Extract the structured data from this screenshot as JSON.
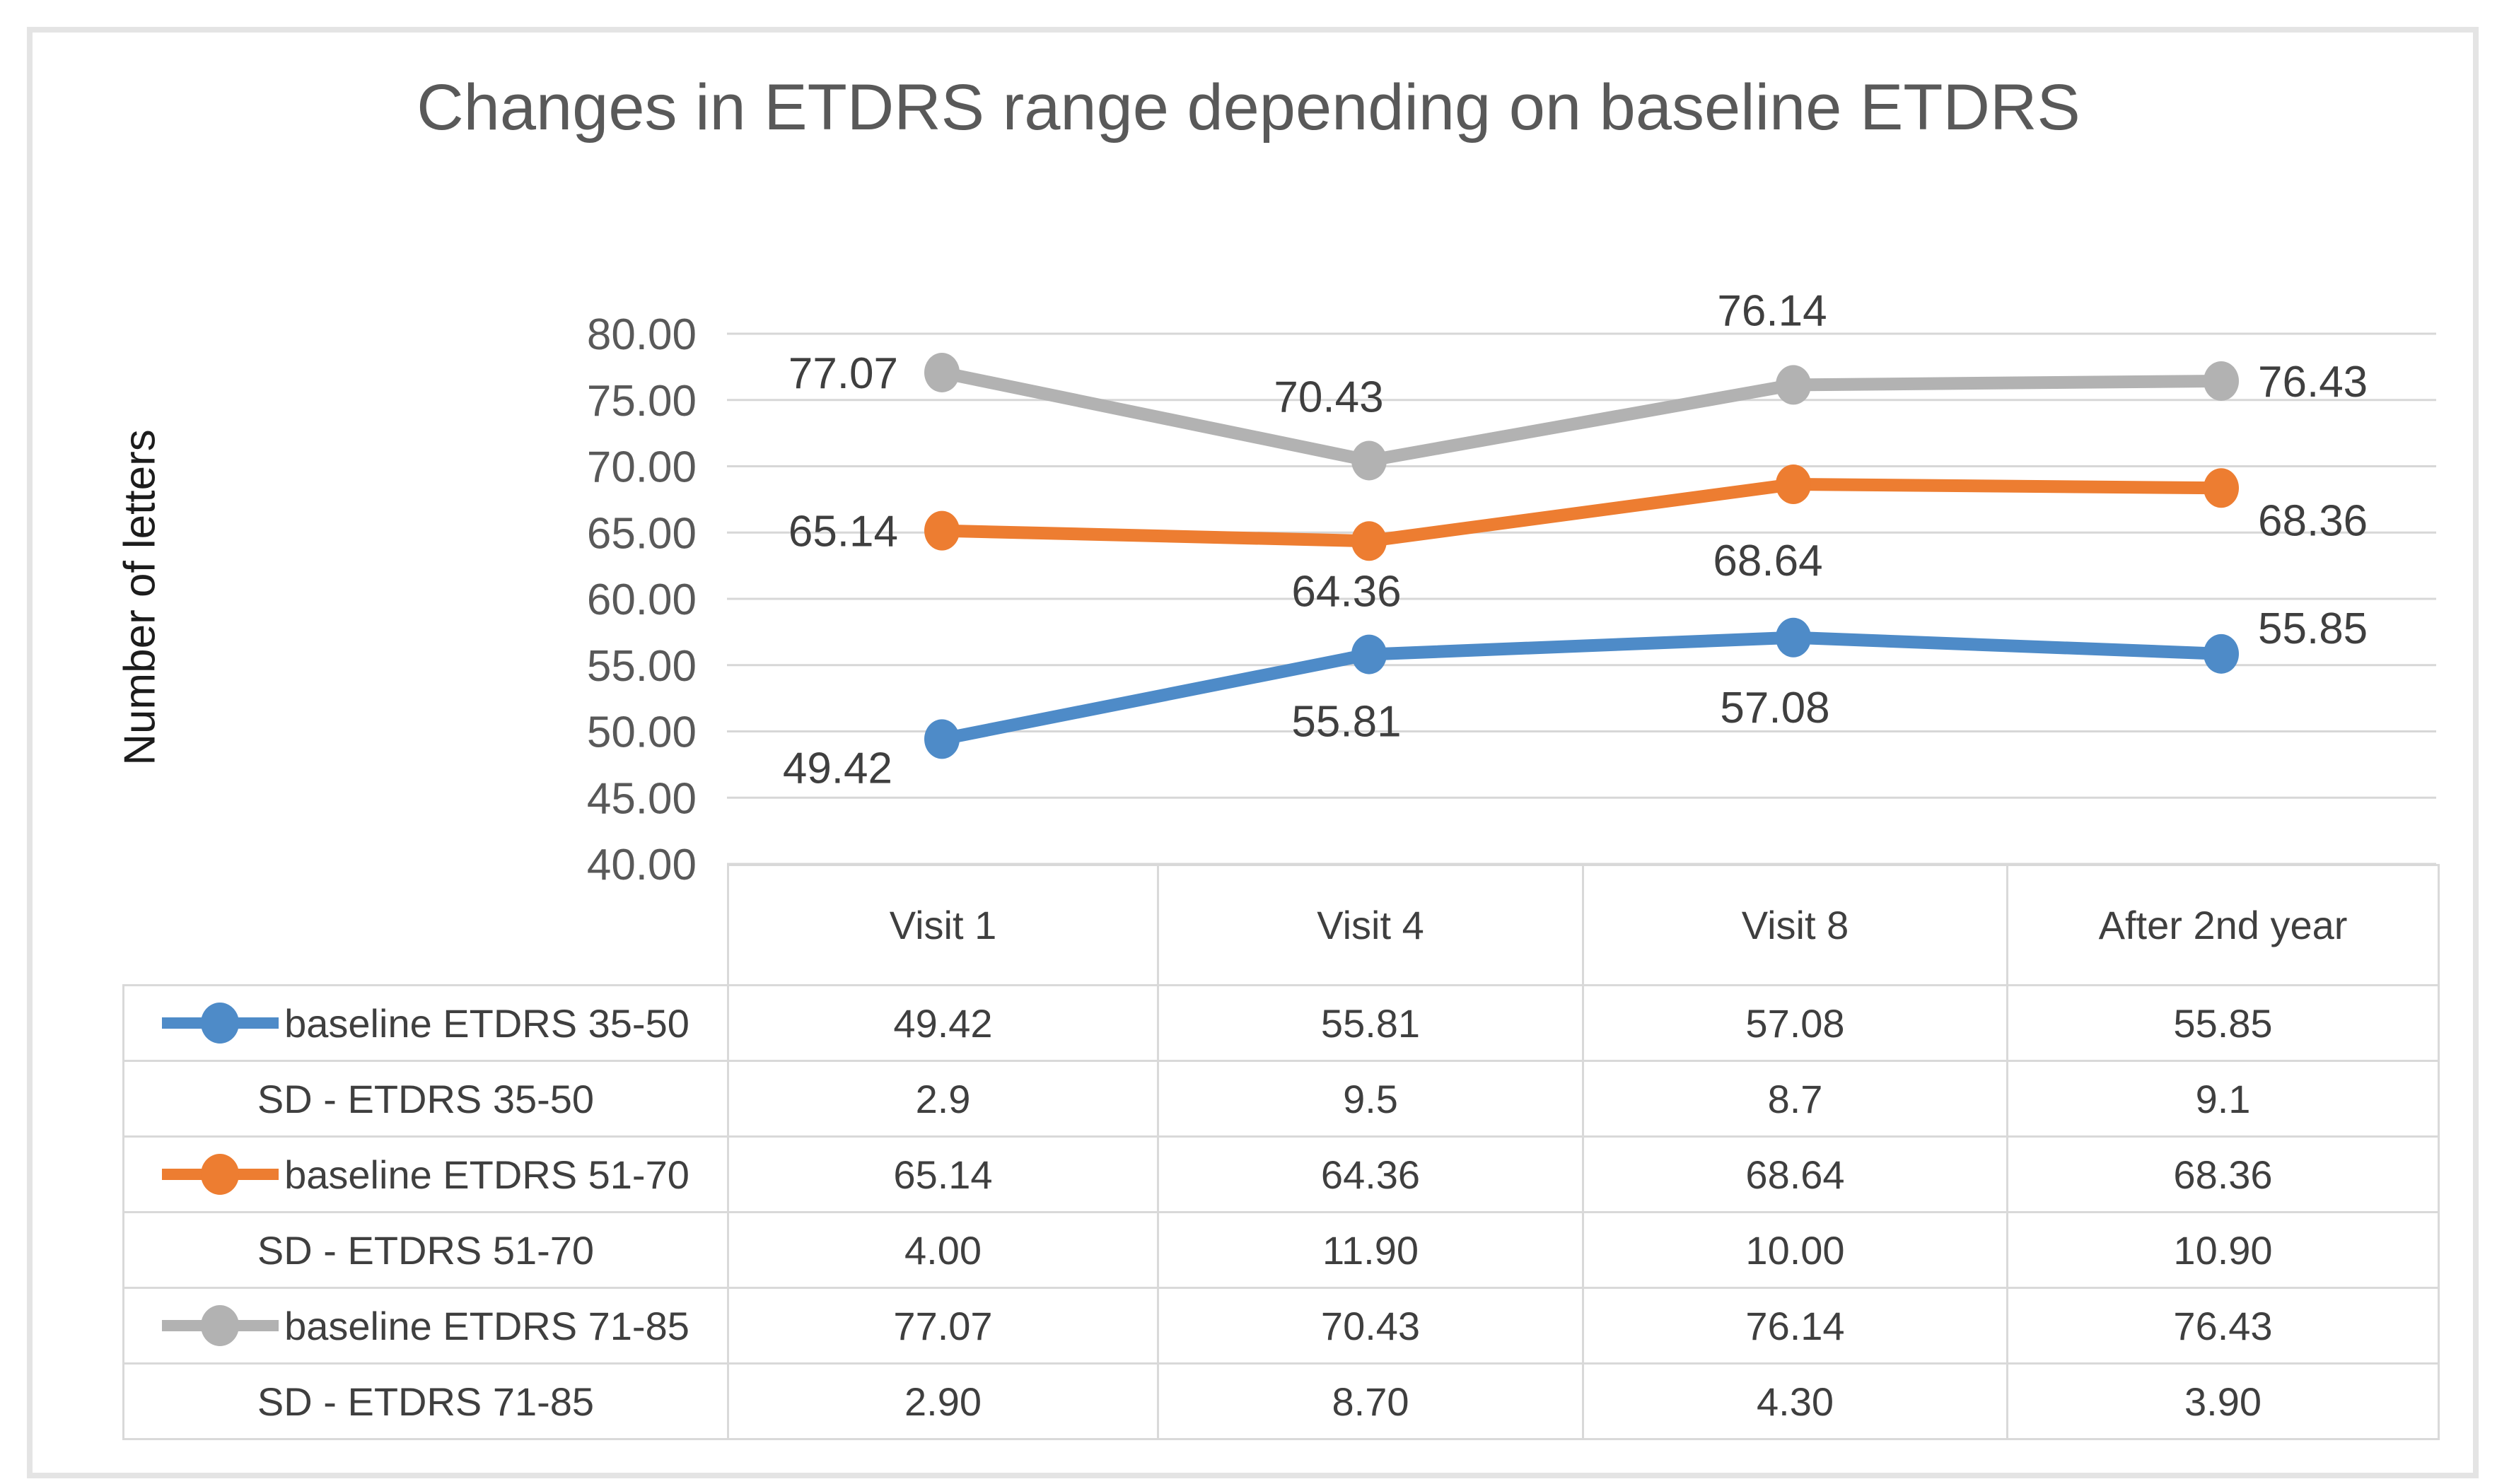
{
  "figure": {
    "title": "Changes in ETDRS range depending on baseline ETDRS",
    "y_axis_title": "Number of letters"
  },
  "chart_data": {
    "type": "line",
    "title": "Changes in ETDRS range depending on baseline ETDRS",
    "xlabel": "",
    "ylabel": "Number of letters",
    "categories": [
      "Visit 1",
      "Visit 4",
      "Visit 8",
      "After 2nd year"
    ],
    "ylim": [
      40,
      80
    ],
    "ytick_step": 5,
    "ytick_labels": [
      "40.00",
      "45.00",
      "50.00",
      "55.00",
      "60.00",
      "65.00",
      "70.00",
      "75.00",
      "80.00"
    ],
    "grid": true,
    "gridline_color": "#d7d7d7",
    "legend_position": "table-below",
    "series": [
      {
        "name": "baseline ETDRS 35-50",
        "color": "#4e8bc8",
        "values": [
          49.42,
          55.81,
          57.08,
          55.85
        ],
        "labels": [
          "49.42",
          "55.81",
          "57.08",
          "55.85"
        ],
        "label_offsets": [
          [
            -70,
            62,
            "end"
          ],
          [
            -32,
            116,
            "middle"
          ],
          [
            -26,
            120,
            "middle"
          ],
          [
            52,
            -15,
            "start"
          ]
        ]
      },
      {
        "name": "baseline ETDRS 51-70",
        "color": "#ed7d31",
        "values": [
          65.14,
          64.36,
          68.64,
          68.36
        ],
        "labels": [
          "65.14",
          "64.36",
          "68.64",
          "68.36"
        ],
        "label_offsets": [
          [
            -62,
            22,
            "end"
          ],
          [
            -32,
            92,
            "middle"
          ],
          [
            -36,
            129,
            "middle"
          ],
          [
            52,
            67,
            "start"
          ]
        ]
      },
      {
        "name": "baseline ETDRS 71-85",
        "color": "#b2b2b2",
        "values": [
          77.07,
          70.43,
          76.14,
          76.43
        ],
        "labels": [
          "77.07",
          "70.43",
          "76.14",
          "76.43"
        ],
        "label_offsets": [
          [
            -62,
            22,
            "end"
          ],
          [
            -57,
            -69,
            "middle"
          ],
          [
            -30,
            -84,
            "middle"
          ],
          [
            52,
            22,
            "start"
          ]
        ]
      }
    ]
  },
  "table": {
    "col_headers": [
      "Visit 1",
      "Visit 4",
      "Visit 8",
      "After 2nd year"
    ],
    "rows": [
      {
        "label": "baseline ETDRS 35-50",
        "key_color": "#4e8bc8",
        "values": [
          "49.42",
          "55.81",
          "57.08",
          "55.85"
        ]
      },
      {
        "label": "SD - ETDRS 35-50",
        "key_color": null,
        "values": [
          "2.9",
          "9.5",
          "8.7",
          "9.1"
        ]
      },
      {
        "label": "baseline ETDRS 51-70",
        "key_color": "#ed7d31",
        "values": [
          "65.14",
          "64.36",
          "68.64",
          "68.36"
        ]
      },
      {
        "label": "SD -  ETDRS 51-70",
        "key_color": null,
        "values": [
          "4.00",
          "11.90",
          "10.00",
          "10.90"
        ]
      },
      {
        "label": "baseline ETDRS 71-85",
        "key_color": "#b2b2b2",
        "values": [
          "77.07",
          "70.43",
          "76.14",
          "76.43"
        ]
      },
      {
        "label": "SD - ETDRS 71-85",
        "key_color": null,
        "values": [
          "2.90",
          "8.70",
          "4.30",
          "3.90"
        ]
      }
    ]
  }
}
